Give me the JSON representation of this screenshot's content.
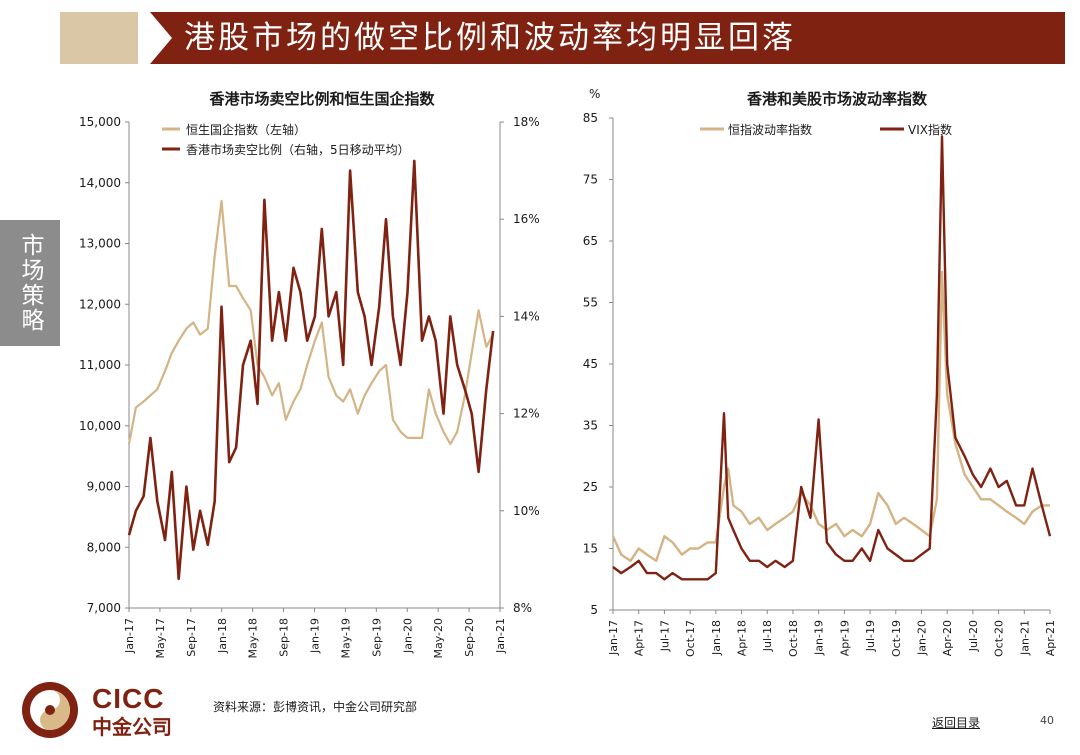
{
  "header": {
    "title": "港股市场的做空比例和波动率均明显回落"
  },
  "side_tab": {
    "label": "市场策略"
  },
  "footer": {
    "logo_en": "CICC",
    "logo_cn": "中金公司",
    "source": "资料来源：彭博资讯，中金公司研究部",
    "back_link": "返回目录",
    "page_number": "40"
  },
  "colors": {
    "banner": "#7f2211",
    "accent_tan": "#d9b98a",
    "series_dark": "#7f2211",
    "series_light": "#d4b485"
  },
  "chart_data": [
    {
      "type": "line",
      "title": "香港市场卖空比例和恒生国企指数",
      "legend_position": "top-left",
      "grid": false,
      "x_ticks": [
        "Jan-17",
        "May-17",
        "Sep-17",
        "Jan-18",
        "May-18",
        "Sep-18",
        "Jan-19",
        "May-19",
        "Sep-19",
        "Jan-20",
        "May-20",
        "Sep-20",
        "Jan-21"
      ],
      "left_axis": {
        "ylim": [
          7000,
          15000
        ],
        "ticks": [
          "7,000",
          "8,000",
          "9,000",
          "10,000",
          "11,000",
          "12,000",
          "13,000",
          "14,000",
          "15,000"
        ]
      },
      "right_axis": {
        "ylim": [
          8,
          18
        ],
        "ticks": [
          "8%",
          "10%",
          "12%",
          "14%",
          "16%",
          "18%"
        ]
      },
      "series": [
        {
          "name": "恒生国企指数（左轴）",
          "axis": "left",
          "color": "#d4b485",
          "x": [
            2017.0,
            2017.08,
            2017.17,
            2017.25,
            2017.33,
            2017.42,
            2017.5,
            2017.58,
            2017.67,
            2017.75,
            2017.83,
            2017.92,
            2018.0,
            2018.08,
            2018.17,
            2018.25,
            2018.33,
            2018.42,
            2018.5,
            2018.58,
            2018.67,
            2018.75,
            2018.83,
            2018.92,
            2019.0,
            2019.08,
            2019.17,
            2019.25,
            2019.33,
            2019.42,
            2019.5,
            2019.58,
            2019.67,
            2019.75,
            2019.83,
            2019.92,
            2020.0,
            2020.08,
            2020.17,
            2020.25,
            2020.33,
            2020.42,
            2020.5,
            2020.58,
            2020.67,
            2020.75,
            2020.83,
            2020.92,
            2021.0,
            2021.08,
            2021.17,
            2021.25
          ],
          "values": [
            9700,
            10300,
            10400,
            10500,
            10600,
            10900,
            11200,
            11400,
            11600,
            11700,
            11500,
            11600,
            12800,
            13700,
            12300,
            12300,
            12100,
            11900,
            11000,
            10800,
            10500,
            10700,
            10100,
            10400,
            10600,
            11000,
            11400,
            11700,
            10800,
            10500,
            10400,
            10600,
            10200,
            10500,
            10700,
            10900,
            11000,
            10100,
            9900,
            9800,
            9800,
            9800,
            10600,
            10200,
            9900,
            9700,
            9900,
            10500,
            11200,
            11900,
            11300,
            11500
          ]
        },
        {
          "name": "香港市场卖空比例（右轴，5日移动平均）",
          "axis": "right",
          "color": "#7f2211",
          "x": [
            2017.0,
            2017.08,
            2017.17,
            2017.25,
            2017.33,
            2017.42,
            2017.5,
            2017.58,
            2017.67,
            2017.75,
            2017.83,
            2017.92,
            2018.0,
            2018.08,
            2018.17,
            2018.25,
            2018.33,
            2018.42,
            2018.5,
            2018.58,
            2018.67,
            2018.75,
            2018.83,
            2018.92,
            2019.0,
            2019.08,
            2019.17,
            2019.25,
            2019.33,
            2019.42,
            2019.5,
            2019.58,
            2019.67,
            2019.75,
            2019.83,
            2019.92,
            2020.0,
            2020.08,
            2020.17,
            2020.25,
            2020.33,
            2020.42,
            2020.5,
            2020.58,
            2020.67,
            2020.75,
            2020.83,
            2020.92,
            2021.0,
            2021.08,
            2021.17,
            2021.25
          ],
          "values": [
            9.5,
            10.0,
            10.3,
            11.5,
            10.2,
            9.4,
            10.8,
            8.6,
            10.5,
            9.2,
            10.0,
            9.3,
            10.2,
            14.2,
            11.0,
            11.3,
            13.0,
            13.5,
            12.2,
            16.4,
            13.5,
            14.5,
            13.5,
            15.0,
            14.5,
            13.5,
            14.0,
            15.8,
            14.0,
            14.5,
            13.0,
            17.0,
            14.5,
            14.0,
            13.0,
            14.2,
            16.0,
            14.0,
            13.0,
            14.5,
            17.2,
            13.5,
            14.0,
            13.5,
            12.0,
            14.0,
            13.0,
            12.5,
            12.0,
            10.8,
            12.5,
            13.7
          ]
        }
      ]
    },
    {
      "type": "line",
      "title": "香港和美股市场波动率指数",
      "y_unit": "%",
      "legend_position": "top",
      "grid": false,
      "x_ticks": [
        "Jan-17",
        "Apr-17",
        "Jul-17",
        "Oct-17",
        "Jan-18",
        "Apr-18",
        "Jul-18",
        "Oct-18",
        "Jan-19",
        "Apr-19",
        "Jul-19",
        "Oct-19",
        "Jan-20",
        "Apr-20",
        "Jul-20",
        "Oct-20",
        "Jan-21",
        "Apr-21"
      ],
      "ylim": [
        5,
        85
      ],
      "y_ticks": [
        "5",
        "15",
        "25",
        "35",
        "45",
        "55",
        "65",
        "75",
        "85"
      ],
      "series": [
        {
          "name": "恒指波动率指数",
          "color": "#d4b485",
          "x": [
            2017.0,
            2017.08,
            2017.17,
            2017.25,
            2017.33,
            2017.42,
            2017.5,
            2017.58,
            2017.67,
            2017.75,
            2017.83,
            2017.92,
            2018.0,
            2018.08,
            2018.12,
            2018.17,
            2018.25,
            2018.33,
            2018.42,
            2018.5,
            2018.58,
            2018.67,
            2018.75,
            2018.83,
            2018.92,
            2019.0,
            2019.08,
            2019.17,
            2019.25,
            2019.33,
            2019.42,
            2019.5,
            2019.58,
            2019.67,
            2019.75,
            2019.83,
            2019.92,
            2020.0,
            2020.08,
            2020.15,
            2020.2,
            2020.25,
            2020.33,
            2020.42,
            2020.5,
            2020.58,
            2020.67,
            2020.75,
            2020.83,
            2020.92,
            2021.0,
            2021.08,
            2021.17,
            2021.25
          ],
          "values": [
            17,
            14,
            13,
            15,
            14,
            13,
            17,
            16,
            14,
            15,
            15,
            16,
            16,
            25,
            28,
            22,
            21,
            19,
            20,
            18,
            19,
            20,
            21,
            24,
            22,
            19,
            18,
            19,
            17,
            18,
            17,
            19,
            24,
            22,
            19,
            20,
            19,
            18,
            17,
            23,
            60,
            40,
            32,
            27,
            25,
            23,
            23,
            22,
            21,
            20,
            19,
            21,
            22,
            22
          ]
        },
        {
          "name": "VIX指数",
          "color": "#7f2211",
          "x": [
            2017.0,
            2017.08,
            2017.17,
            2017.25,
            2017.33,
            2017.42,
            2017.5,
            2017.58,
            2017.67,
            2017.75,
            2017.83,
            2017.92,
            2018.0,
            2018.08,
            2018.12,
            2018.17,
            2018.25,
            2018.33,
            2018.42,
            2018.5,
            2018.58,
            2018.67,
            2018.75,
            2018.83,
            2018.92,
            2019.0,
            2019.08,
            2019.17,
            2019.25,
            2019.33,
            2019.42,
            2019.5,
            2019.58,
            2019.67,
            2019.75,
            2019.83,
            2019.92,
            2020.0,
            2020.08,
            2020.15,
            2020.2,
            2020.25,
            2020.33,
            2020.42,
            2020.5,
            2020.58,
            2020.67,
            2020.75,
            2020.83,
            2020.92,
            2021.0,
            2021.08,
            2021.17,
            2021.25
          ],
          "values": [
            12,
            11,
            12,
            13,
            11,
            11,
            10,
            11,
            10,
            10,
            10,
            10,
            11,
            37,
            20,
            18,
            15,
            13,
            13,
            12,
            13,
            12,
            13,
            25,
            20,
            36,
            16,
            14,
            13,
            13,
            15,
            13,
            18,
            15,
            14,
            13,
            13,
            14,
            15,
            40,
            82,
            45,
            33,
            30,
            27,
            25,
            28,
            25,
            26,
            22,
            22,
            28,
            22,
            17
          ]
        }
      ]
    }
  ]
}
